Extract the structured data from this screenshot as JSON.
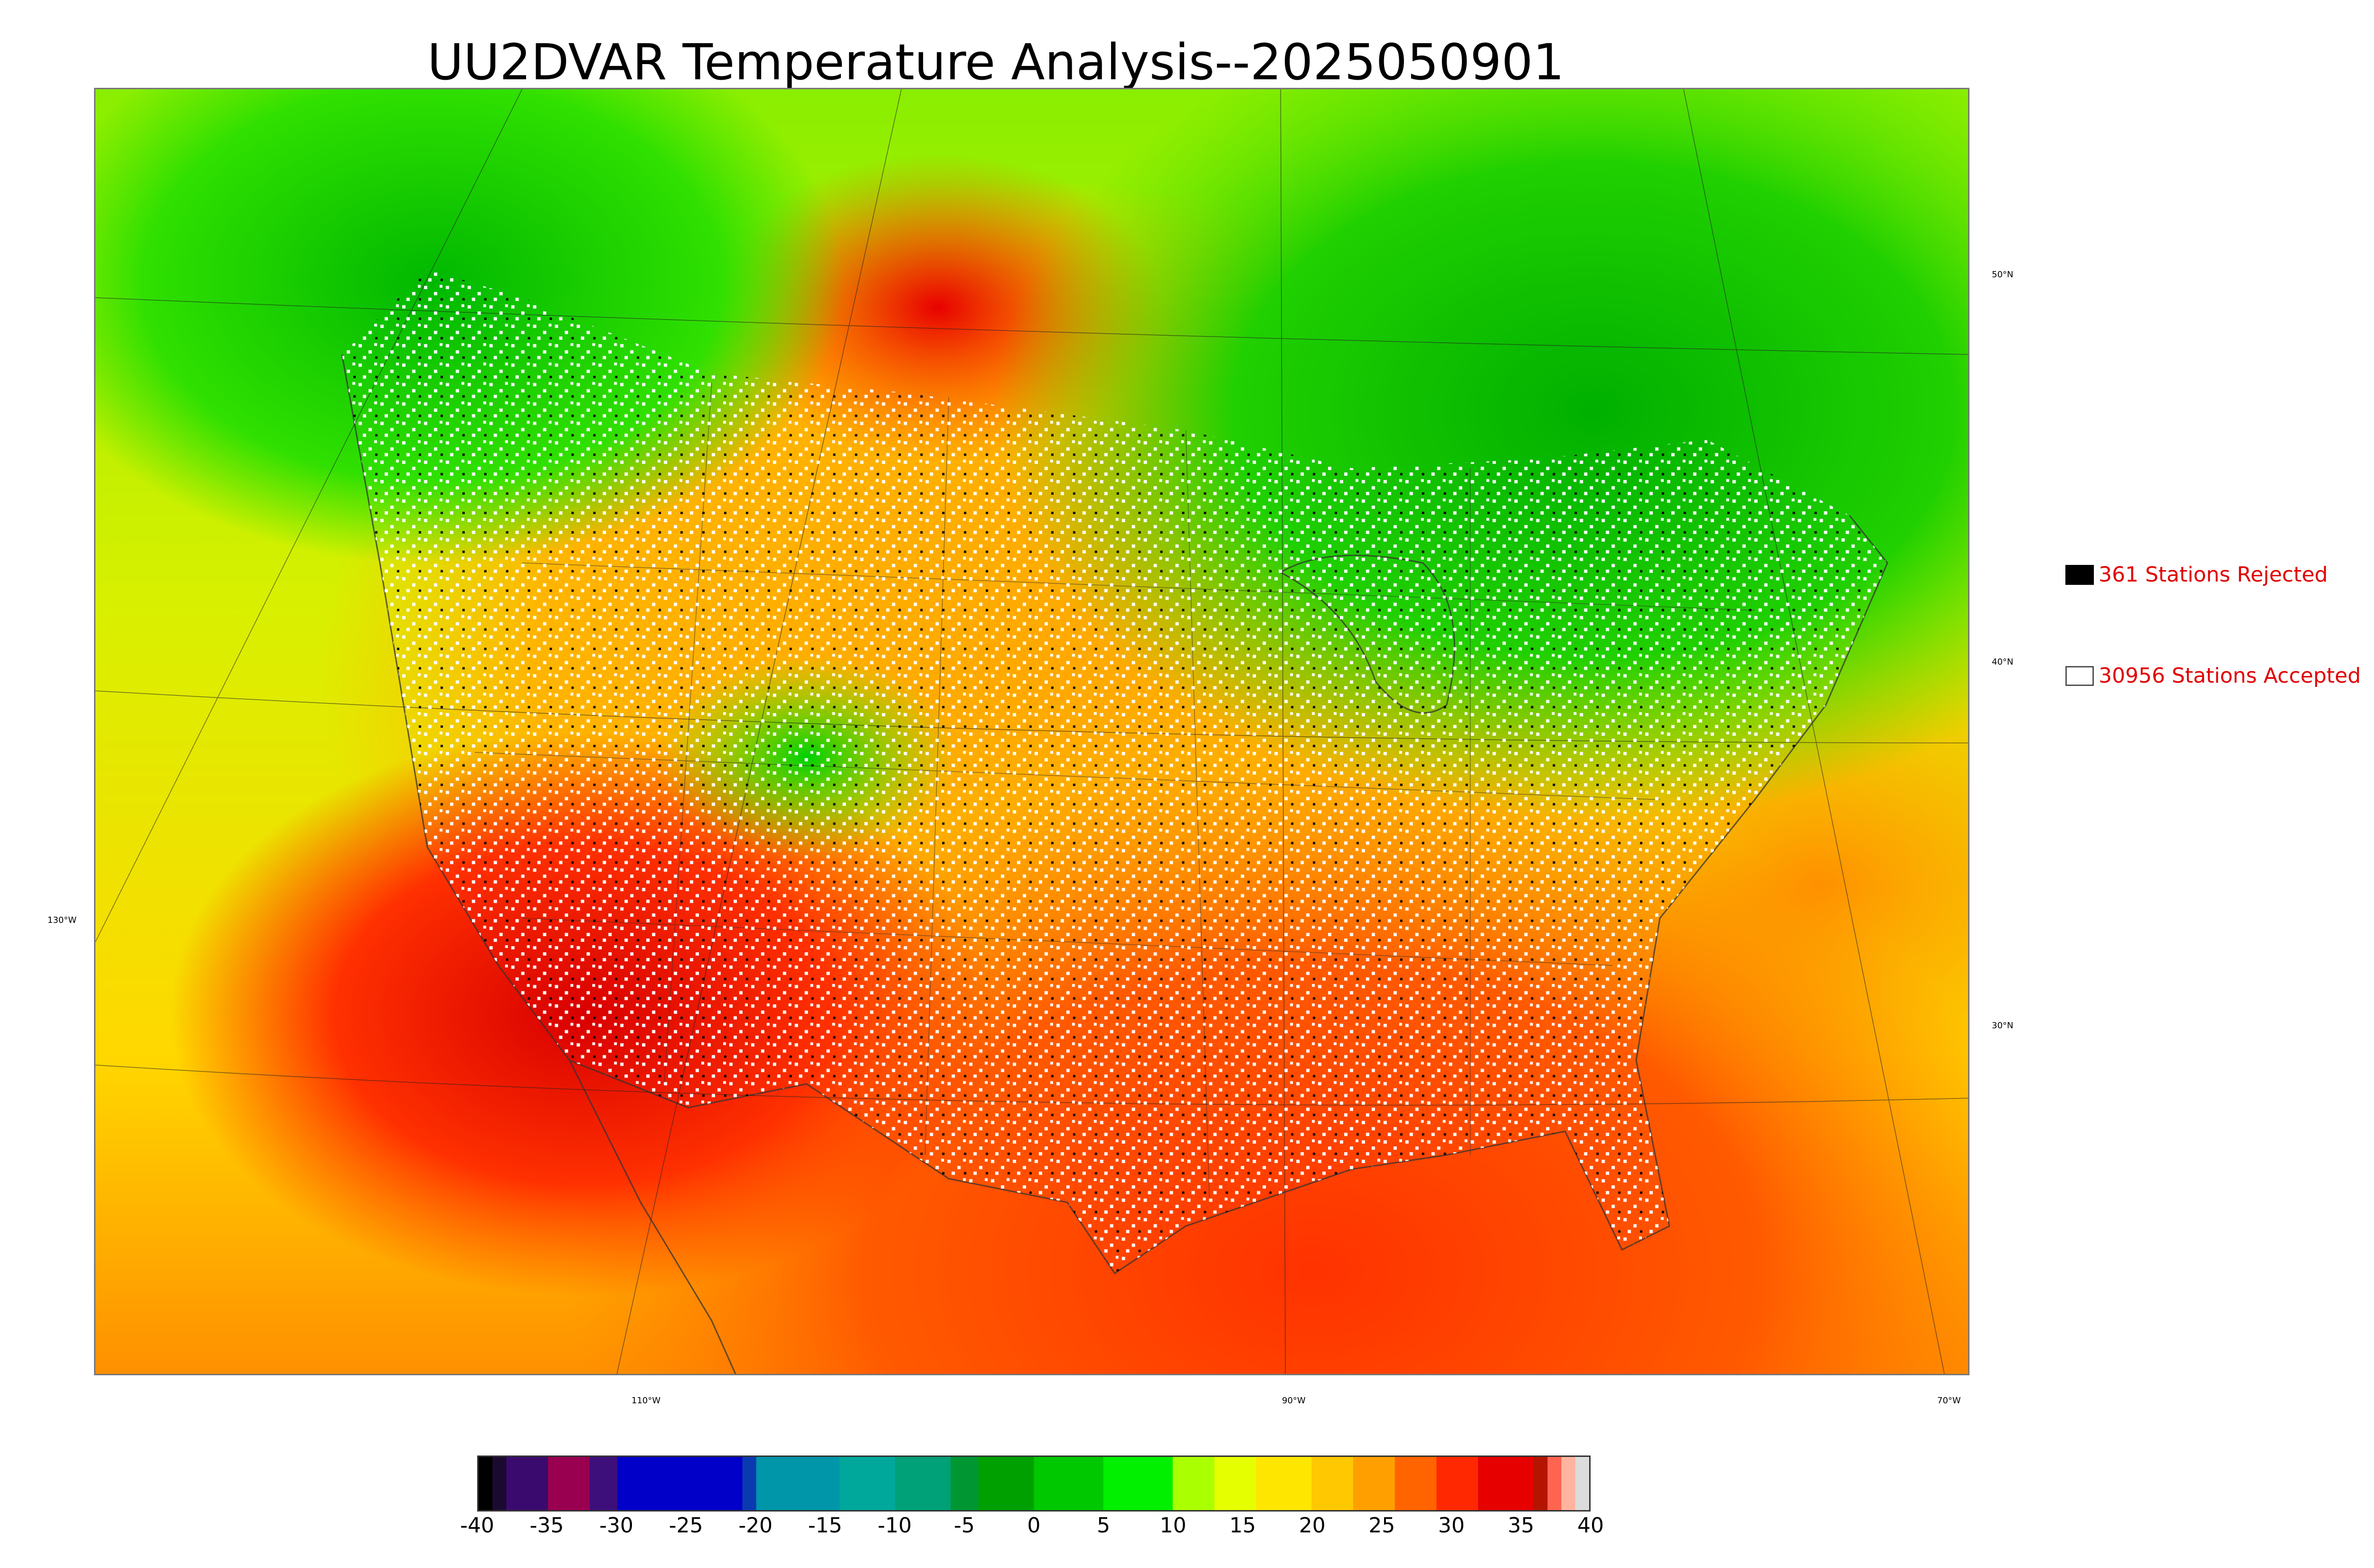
{
  "title": "UU2DVAR Temperature Analysis--2025050901",
  "map": {
    "lat_labels": [
      {
        "text": "50°N",
        "side": "right"
      },
      {
        "text": "40°N",
        "side": "right"
      },
      {
        "text": "30°N",
        "side": "right"
      },
      {
        "text": "130°W",
        "side": "left"
      }
    ],
    "lon_labels": [
      "110°W",
      "90°W",
      "70°W"
    ]
  },
  "legend": {
    "rejected": {
      "count": "361",
      "label": "361 Stations Rejected",
      "color": "#000000"
    },
    "accepted": {
      "count": "30956",
      "label": "30956 Stations Accepted",
      "color": "#ffffff"
    },
    "text_color": "#e00000"
  },
  "colorbar": {
    "min": -40,
    "max": 40,
    "tick_labels": [
      "-40",
      "-35",
      "-30",
      "-25",
      "-20",
      "-15",
      "-10",
      "-5",
      "0",
      "5",
      "10",
      "15",
      "20",
      "25",
      "30",
      "35",
      "40"
    ],
    "segments": [
      {
        "from": -40,
        "to": -39,
        "color": "#000000"
      },
      {
        "from": -39,
        "to": -38,
        "color": "#1a0a30"
      },
      {
        "from": -38,
        "to": -35,
        "color": "#3b0a6e"
      },
      {
        "from": -35,
        "to": -32,
        "color": "#99004f"
      },
      {
        "from": -32,
        "to": -30,
        "color": "#3d0f7a"
      },
      {
        "from": -30,
        "to": -21,
        "color": "#0000c8"
      },
      {
        "from": -21,
        "to": -20,
        "color": "#0a3ab0"
      },
      {
        "from": -20,
        "to": -14,
        "color": "#0096aa"
      },
      {
        "from": -14,
        "to": -10,
        "color": "#00a89c"
      },
      {
        "from": -10,
        "to": -6,
        "color": "#00a078"
      },
      {
        "from": -6,
        "to": -4,
        "color": "#009632"
      },
      {
        "from": -4,
        "to": 0,
        "color": "#00a000"
      },
      {
        "from": 0,
        "to": 5,
        "color": "#00c800"
      },
      {
        "from": 5,
        "to": 10,
        "color": "#00f000"
      },
      {
        "from": 10,
        "to": 13,
        "color": "#aaff00"
      },
      {
        "from": 13,
        "to": 16,
        "color": "#e6ff00"
      },
      {
        "from": 16,
        "to": 20,
        "color": "#ffe600"
      },
      {
        "from": 20,
        "to": 23,
        "color": "#ffc800"
      },
      {
        "from": 23,
        "to": 26,
        "color": "#ffa000"
      },
      {
        "from": 26,
        "to": 29,
        "color": "#ff6400"
      },
      {
        "from": 29,
        "to": 32,
        "color": "#ff2800"
      },
      {
        "from": 32,
        "to": 36,
        "color": "#e60000"
      },
      {
        "from": 36,
        "to": 37,
        "color": "#b41400"
      },
      {
        "from": 37,
        "to": 38,
        "color": "#ff6450"
      },
      {
        "from": 38,
        "to": 39,
        "color": "#ffb4a0"
      },
      {
        "from": 39,
        "to": 40,
        "color": "#dcdcdc"
      }
    ]
  }
}
